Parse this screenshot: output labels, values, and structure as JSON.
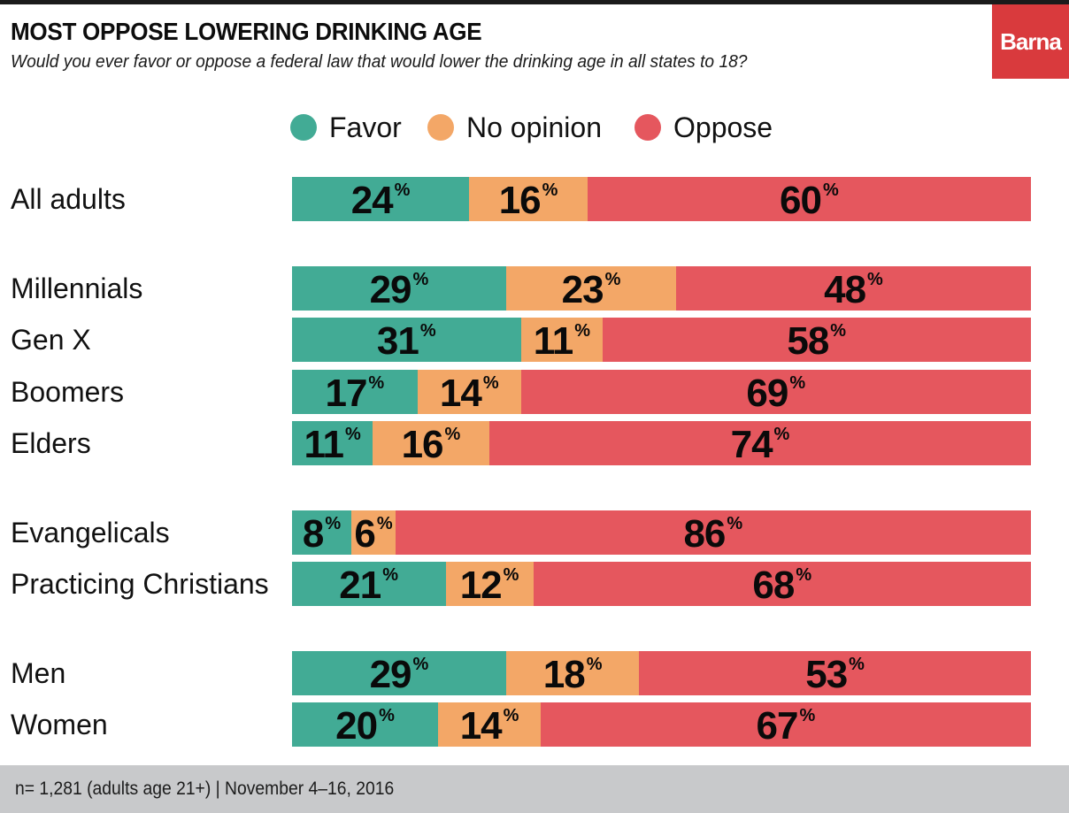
{
  "header": {
    "title": "MOST OPPOSE LOWERING DRINKING AGE",
    "subtitle": "Would you ever favor or oppose a federal law that would lower the drinking age in all states to 18?",
    "logo": "Barna"
  },
  "footer": {
    "note": "n= 1,281 (adults age 21+) | November 4–16, 2016"
  },
  "colors": {
    "favor": "#42ab95",
    "no_opinion": "#f3a767",
    "oppose": "#e5575e",
    "logo_bg": "#d93a3d",
    "footer_bg": "#c8c9cb"
  },
  "chart_data": {
    "type": "bar",
    "orientation": "horizontal",
    "stacked": true,
    "title": "MOST OPPOSE LOWERING DRINKING AGE",
    "subtitle": "Would you ever favor or oppose a federal law that would lower the drinking age in all states to 18?",
    "xlabel": "",
    "ylabel": "",
    "xlim": [
      0,
      100
    ],
    "unit": "%",
    "grid": false,
    "legend_position": "top-center",
    "legend": [
      "Favor",
      "No opinion",
      "Oppose"
    ],
    "categories": [
      "All adults",
      "Millennials",
      "Gen X",
      "Boomers",
      "Elders",
      "Evangelicals",
      "Practicing Christians",
      "Men",
      "Women"
    ],
    "groups": [
      [
        "All adults"
      ],
      [
        "Millennials",
        "Gen X",
        "Boomers",
        "Elders"
      ],
      [
        "Evangelicals",
        "Practicing Christians"
      ],
      [
        "Men",
        "Women"
      ]
    ],
    "series": [
      {
        "name": "Favor",
        "values": [
          24,
          29,
          31,
          17,
          11,
          8,
          21,
          29,
          20
        ]
      },
      {
        "name": "No opinion",
        "values": [
          16,
          23,
          11,
          14,
          16,
          6,
          12,
          18,
          14
        ]
      },
      {
        "name": "Oppose",
        "values": [
          60,
          48,
          58,
          69,
          74,
          86,
          68,
          53,
          67
        ]
      }
    ]
  }
}
